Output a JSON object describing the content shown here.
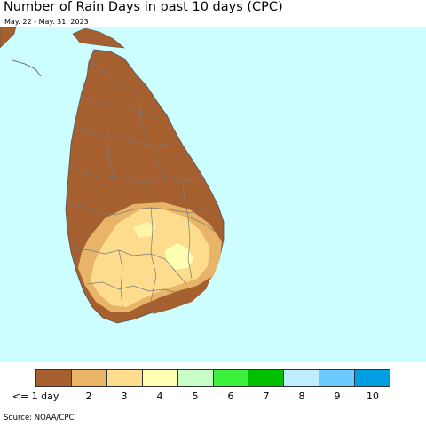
{
  "title": "Number of Rain Days in past 10 days (CPC)",
  "subtitle": "May. 22 - May. 31, 2023",
  "source": "Source: NOAA/CPC",
  "colors": {
    "ocean": "#ccfeff",
    "land_1": "#a65f2e",
    "land_2": "#e8b468",
    "land_3": "#fddc8e",
    "land_4": "#ffffb4",
    "border": "#7a7a7a"
  },
  "legend": [
    {
      "label": "<= 1 day",
      "color": "#a65f2e"
    },
    {
      "label": "2",
      "color": "#e8b468"
    },
    {
      "label": "3",
      "color": "#fddc8e"
    },
    {
      "label": "4",
      "color": "#ffffb4"
    },
    {
      "label": "5",
      "color": "#c8ffc8"
    },
    {
      "label": "6",
      "color": "#3cf03c"
    },
    {
      "label": "7",
      "color": "#00c000"
    },
    {
      "label": "8",
      "color": "#bfefff"
    },
    {
      "label": "9",
      "color": "#6ccaff"
    },
    {
      "label": "10",
      "color": "#009de0"
    }
  ]
}
